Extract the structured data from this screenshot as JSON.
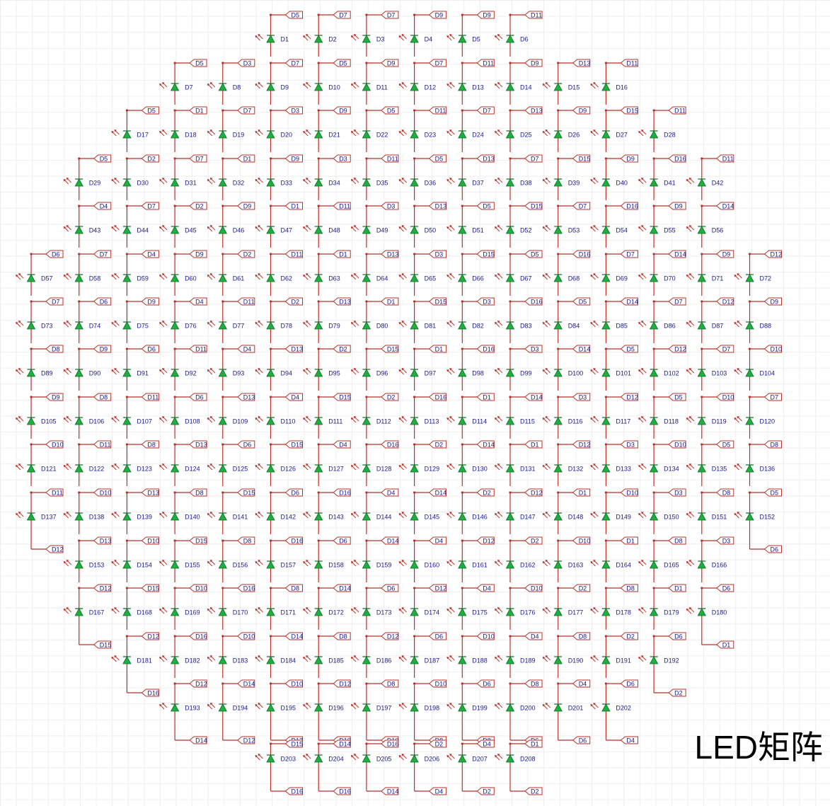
{
  "title": "LED矩阵",
  "colors": {
    "wire": "#b4322a",
    "led_fill": "#1db03f",
    "led_stroke": "#0b6b23",
    "label": "#1a1a8c",
    "tag_stroke": "#b4322a",
    "grid": "#eeeeee"
  },
  "rows": [
    {
      "labels": [
        "D1",
        "D2",
        "D3",
        "D4",
        "D5",
        "D6"
      ],
      "top": [
        "D5",
        "D7",
        "D7",
        "D9",
        "D9",
        "D11"
      ],
      "bottom": []
    },
    {
      "labels": [
        "D7",
        "D8",
        "D9",
        "D10",
        "D11",
        "D12",
        "D13",
        "D14",
        "D15",
        "D16"
      ],
      "top": [
        "D5",
        "D3",
        "D7",
        "D5",
        "D9",
        "D7",
        "D11",
        "D9",
        "D13",
        "D11"
      ],
      "bottom": []
    },
    {
      "labels": [
        "D17",
        "D18",
        "D19",
        "D20",
        "D21",
        "D22",
        "D23",
        "D24",
        "D25",
        "D26",
        "D27",
        "D28"
      ],
      "top": [
        "D5",
        "D1",
        "D7",
        "D3",
        "D9",
        "D5",
        "D11",
        "D7",
        "D13",
        "D9",
        "D15",
        "D11"
      ],
      "bottom": []
    },
    {
      "labels": [
        "D29",
        "D30",
        "D31",
        "D32",
        "D33",
        "D34",
        "D35",
        "D36",
        "D37",
        "D38",
        "D39",
        "D40",
        "D41",
        "D42"
      ],
      "top": [
        "D5",
        "D2",
        "D7",
        "D1",
        "D9",
        "D3",
        "D11",
        "D5",
        "D13",
        "D7",
        "D15",
        "D9",
        "D16",
        "D11"
      ],
      "bottom": []
    },
    {
      "labels": [
        "D43",
        "D44",
        "D45",
        "D46",
        "D47",
        "D48",
        "D49",
        "D50",
        "D51",
        "D52",
        "D53",
        "D54",
        "D55",
        "D56"
      ],
      "top": [
        "D4",
        "D7",
        "D2",
        "D9",
        "D1",
        "D11",
        "D3",
        "D13",
        "D5",
        "D15",
        "D7",
        "D16",
        "D9",
        "D14"
      ],
      "bottom": []
    },
    {
      "labels": [
        "D57",
        "D58",
        "D59",
        "D60",
        "D61",
        "D62",
        "D63",
        "D64",
        "D65",
        "D66",
        "D67",
        "D68",
        "D69",
        "D70",
        "D71",
        "D72"
      ],
      "top": [
        "D6",
        "D7",
        "D4",
        "D9",
        "D2",
        "D11",
        "D1",
        "D13",
        "D3",
        "D15",
        "D5",
        "D16",
        "D7",
        "D14",
        "D9",
        "D12"
      ],
      "bottom": []
    },
    {
      "labels": [
        "D73",
        "D74",
        "D75",
        "D76",
        "D77",
        "D78",
        "D79",
        "D80",
        "D81",
        "D82",
        "D83",
        "D84",
        "D85",
        "D86",
        "D87",
        "D88"
      ],
      "top": [
        "D7",
        "D6",
        "D9",
        "D4",
        "D11",
        "D2",
        "D13",
        "D1",
        "D15",
        "D3",
        "D16",
        "D5",
        "D14",
        "D7",
        "D12",
        "D9"
      ],
      "bottom": []
    },
    {
      "labels": [
        "D89",
        "D90",
        "D91",
        "D92",
        "D93",
        "D94",
        "D95",
        "D96",
        "D97",
        "D98",
        "D99",
        "D100",
        "D101",
        "D102",
        "D103",
        "D104"
      ],
      "top": [
        "D8",
        "D9",
        "D6",
        "D11",
        "D4",
        "D13",
        "D2",
        "D15",
        "D1",
        "D16",
        "D3",
        "D14",
        "D5",
        "D12",
        "D7",
        "D10"
      ],
      "bottom": []
    },
    {
      "labels": [
        "D105",
        "D106",
        "D107",
        "D108",
        "D109",
        "D110",
        "D111",
        "D112",
        "D113",
        "D114",
        "D115",
        "D116",
        "D117",
        "D118",
        "D119",
        "D120"
      ],
      "top": [
        "D9",
        "D8",
        "D11",
        "D6",
        "D13",
        "D4",
        "D15",
        "D2",
        "D16",
        "D1",
        "D14",
        "D3",
        "D12",
        "D5",
        "D10",
        "D7"
      ],
      "bottom": []
    },
    {
      "labels": [
        "D121",
        "D122",
        "D123",
        "D124",
        "D125",
        "D126",
        "D127",
        "D128",
        "D129",
        "D130",
        "D131",
        "D132",
        "D133",
        "D134",
        "D135",
        "D136"
      ],
      "top": [
        "D10",
        "D11",
        "D8",
        "D13",
        "D6",
        "D15",
        "D4",
        "D16",
        "D2",
        "D14",
        "D1",
        "D12",
        "D3",
        "D10",
        "D5",
        "D8"
      ],
      "bottom": []
    },
    {
      "labels": [
        "D137",
        "D138",
        "D139",
        "D140",
        "D141",
        "D142",
        "D143",
        "D144",
        "D145",
        "D146",
        "D147",
        "D148",
        "D149",
        "D150",
        "D151",
        "D152"
      ],
      "top": [
        "D11",
        "D10",
        "D13",
        "D8",
        "D15",
        "D6",
        "D16",
        "D4",
        "D14",
        "D2",
        "D12",
        "D1",
        "D10",
        "D3",
        "D8",
        "D5"
      ],
      "bottom": [
        "D12",
        "",
        "",
        "",
        "",
        "",
        "",
        "",
        "",
        "",
        "",
        "",
        "",
        "",
        "",
        "D6"
      ]
    },
    {
      "labels": [
        "D153",
        "D154",
        "D155",
        "D156",
        "D157",
        "D158",
        "D159",
        "D160",
        "D161",
        "D162",
        "D163",
        "D164",
        "D165",
        "D166"
      ],
      "top": [
        "D13",
        "D10",
        "D15",
        "D8",
        "D16",
        "D6",
        "D14",
        "D4",
        "D12",
        "D2",
        "D10",
        "D1",
        "D8",
        "D3"
      ],
      "bottom": []
    },
    {
      "labels": [
        "D167",
        "D168",
        "D169",
        "D170",
        "D171",
        "D172",
        "D173",
        "D174",
        "D175",
        "D176",
        "D177",
        "D178",
        "D179",
        "D180"
      ],
      "top": [
        "D12",
        "D15",
        "D10",
        "D16",
        "D8",
        "D14",
        "D6",
        "D12",
        "D4",
        "D10",
        "D2",
        "D8",
        "D1",
        "D6"
      ],
      "bottom": [
        "D15",
        "",
        "",
        "",
        "",
        "",
        "",
        "",
        "",
        "",
        "",
        "",
        "",
        "D1"
      ]
    },
    {
      "labels": [
        "D181",
        "D182",
        "D183",
        "D184",
        "D185",
        "D186",
        "D187",
        "D188",
        "D189",
        "D190",
        "D191",
        "D192"
      ],
      "top": [
        "D12",
        "D16",
        "D10",
        "D14",
        "D8",
        "D12",
        "D6",
        "D10",
        "D4",
        "D8",
        "D2",
        "D6"
      ],
      "bottom": [
        "D16",
        "",
        "",
        "",
        "",
        "",
        "",
        "",
        "",
        "",
        "",
        "D2"
      ]
    },
    {
      "labels": [
        "D193",
        "D194",
        "D195",
        "D196",
        "D197",
        "D198",
        "D199",
        "D200",
        "D201",
        "D202"
      ],
      "top": [
        "D12",
        "D14",
        "D10",
        "D12",
        "D8",
        "D10",
        "D6",
        "D8",
        "D4",
        "D6"
      ],
      "bottom": [
        "D14",
        "D12",
        "D12",
        "D10",
        "D10",
        "D8",
        "D8",
        "D6",
        "D6",
        "D4"
      ]
    },
    {
      "labels": [
        "D203",
        "D204",
        "D205",
        "D206",
        "D207",
        "D208"
      ],
      "top": [
        "D15",
        "D14",
        "D16",
        "D2",
        "D4",
        "D1"
      ],
      "bottom": [
        "D16",
        "D16",
        "D14",
        "D4",
        "D2",
        "D2"
      ]
    }
  ]
}
